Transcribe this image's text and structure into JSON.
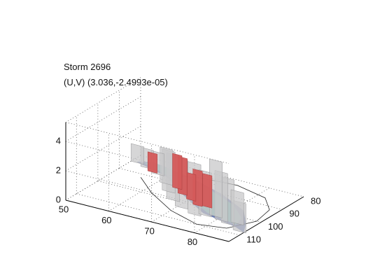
{
  "chart_data": {
    "type": "surface3d",
    "title_lines": [
      "Storm 2696",
      "(U,V) (3.036,-2.4993e-05)"
    ],
    "z_ticks": [
      "0",
      "2",
      "4"
    ],
    "x_ticks": [
      "50",
      "60",
      "70",
      "80"
    ],
    "y_ticks": [
      "80",
      "90",
      "100",
      "110"
    ],
    "zlim": [
      0,
      5.3
    ],
    "xlim": [
      50,
      88
    ],
    "ylim": [
      80,
      115
    ],
    "grid": true,
    "colors": {
      "outer_shell": "#c8c8ca",
      "core": "#d45a5a",
      "base_low": "#4c63a8",
      "base_mid": "#7fc4b8",
      "axis": "#000000",
      "grid": "#555555"
    },
    "shells": [
      {
        "name": "grey-shell",
        "blocks": [
          {
            "x": 51.5,
            "y": 84.5,
            "h": 1.2
          },
          {
            "x": 54.5,
            "y": 86.0,
            "h": 1.3
          },
          {
            "x": 58.0,
            "y": 88.0,
            "h": 1.5
          },
          {
            "x": 62.0,
            "y": 92.0,
            "h": 2.4
          },
          {
            "x": 64.5,
            "y": 96.0,
            "h": 2.8
          },
          {
            "x": 67.5,
            "y": 100.0,
            "h": 3.1
          },
          {
            "x": 71.0,
            "y": 103.0,
            "h": 3.3
          },
          {
            "x": 75.0,
            "y": 105.0,
            "h": 3.5
          },
          {
            "x": 77.0,
            "y": 104.0,
            "h": 3.0
          },
          {
            "x": 79.0,
            "y": 103.0,
            "h": 3.8
          },
          {
            "x": 81.0,
            "y": 104.5,
            "h": 3.3
          },
          {
            "x": 83.0,
            "y": 105.5,
            "h": 3.1
          },
          {
            "x": 84.5,
            "y": 104.0,
            "h": 2.2
          },
          {
            "x": 87.0,
            "y": 108.0,
            "h": 2.0
          }
        ]
      },
      {
        "name": "red-core",
        "blocks": [
          {
            "x": 56.5,
            "y": 87.5,
            "h": 1.3
          },
          {
            "x": 65.0,
            "y": 93.0,
            "h": 2.3
          },
          {
            "x": 67.5,
            "y": 95.5,
            "h": 2.5
          },
          {
            "x": 70.5,
            "y": 97.5,
            "h": 1.8
          },
          {
            "x": 73.0,
            "y": 99.5,
            "h": 2.4
          },
          {
            "x": 75.0,
            "y": 99.0,
            "h": 2.2
          }
        ]
      }
    ]
  }
}
